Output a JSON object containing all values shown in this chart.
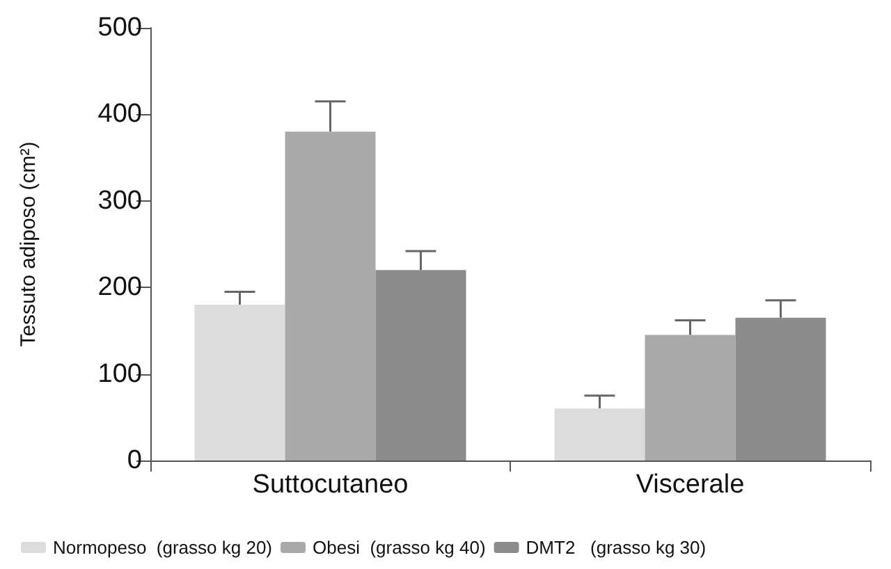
{
  "chart_data": {
    "type": "bar",
    "ylabel": "Tessuto adiposo (cm²)",
    "categories": [
      "Suttocutaneo",
      "Viscerale"
    ],
    "series": [
      {
        "name": "Normopeso  (grasso kg 20)",
        "color": "#dcdcdc",
        "values": [
          180,
          60
        ],
        "errors": [
          15,
          15
        ]
      },
      {
        "name": "Obesi  (grasso kg 40)",
        "color": "#a9a9a9",
        "values": [
          380,
          145
        ],
        "errors": [
          35,
          17
        ]
      },
      {
        "name": "DMT2   (grasso kg 30)",
        "color": "#8c8c8c",
        "values": [
          220,
          165
        ],
        "errors": [
          22,
          20
        ]
      }
    ],
    "ylim": [
      0,
      500
    ],
    "yticks": [
      0,
      100,
      200,
      300,
      400,
      500
    ],
    "grid": false,
    "legend": "bottom"
  }
}
